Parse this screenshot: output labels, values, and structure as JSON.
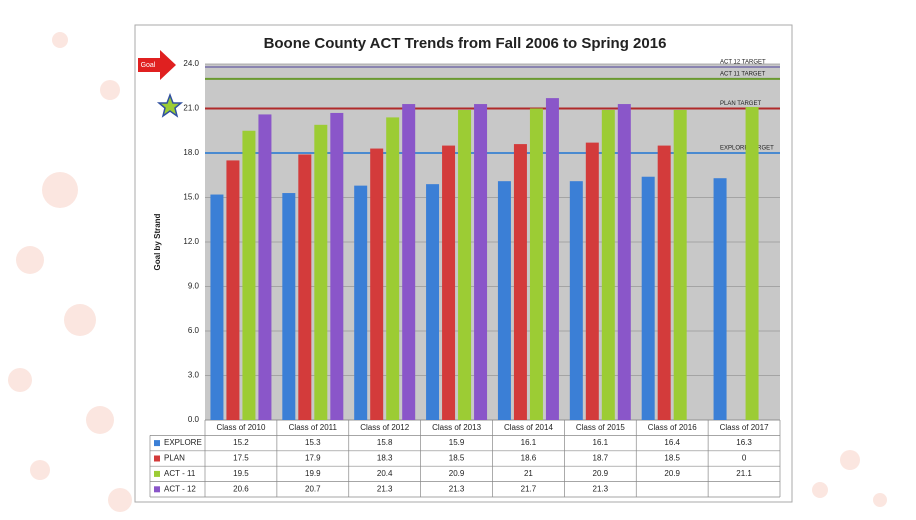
{
  "chart_data": {
    "type": "bar",
    "title": "Boone County ACT Trends from Fall 2006 to Spring 2016",
    "y_label": "Goal by Strand",
    "goal_label": "Goal",
    "categories": [
      "Class of 2010",
      "Class of 2011",
      "Class of 2012",
      "Class of 2013",
      "Class of 2014",
      "Class of 2015",
      "Class of 2016",
      "Class of 2017"
    ],
    "series": [
      {
        "name": "EXPLORE",
        "color": "#3b7fd6",
        "values": [
          15.2,
          15.3,
          15.8,
          15.9,
          16.1,
          16.1,
          16.4,
          16.3
        ]
      },
      {
        "name": "PLAN",
        "color": "#d33b3b",
        "values": [
          17.5,
          17.9,
          18.3,
          18.5,
          18.6,
          18.7,
          18.5,
          0
        ]
      },
      {
        "name": "ACT - 11",
        "color": "#9ccc34",
        "values": [
          19.5,
          19.9,
          20.4,
          20.9,
          21,
          20.9,
          20.9,
          21.1
        ]
      },
      {
        "name": "ACT - 12",
        "color": "#8a56c9",
        "values": [
          20.6,
          20.7,
          21.3,
          21.3,
          21.7,
          21.3,
          null,
          null
        ]
      }
    ],
    "targets": [
      {
        "label": "ACT 12 TARGET",
        "value": 23.8,
        "color": "#8a84b0"
      },
      {
        "label": "ACT 11 TARGET",
        "value": 23,
        "color": "#6a9a30"
      },
      {
        "label": "PLAN TARGET",
        "value": 21,
        "color": "#b02a2a"
      },
      {
        "label": "EXPLORE TARGET",
        "value": 18,
        "color": "#4a8ad0"
      }
    ],
    "ylim": [
      0,
      24
    ],
    "yticks": [
      {
        "value": 0,
        "label": "0.0"
      },
      {
        "value": 3,
        "label": "3.0"
      },
      {
        "value": 6,
        "label": "6.0"
      },
      {
        "value": 9,
        "label": "9.0"
      },
      {
        "value": 12,
        "label": "12.0"
      },
      {
        "value": 15,
        "label": "15.0"
      },
      {
        "value": 18,
        "label": "18.0"
      },
      {
        "value": 21,
        "label": "21.0"
      },
      {
        "value": 24,
        "label": "24.0"
      }
    ],
    "grid": true
  }
}
